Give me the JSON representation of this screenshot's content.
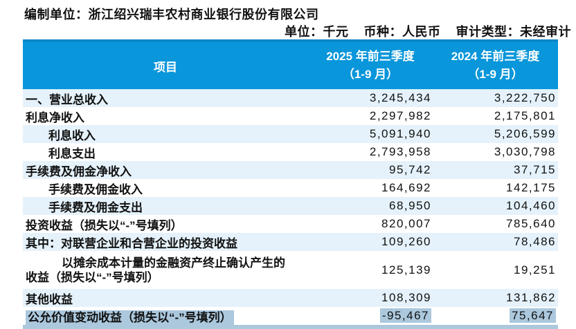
{
  "meta": {
    "prepared_by_label": "编制单位：",
    "prepared_by": "浙江绍兴瑞丰农村商业银行股份有限公司",
    "unit_label": "单位：",
    "unit_value": "千元",
    "currency_label": "币种：",
    "currency_value": "人民币",
    "audit_label": "审计类型：",
    "audit_value": "未经审计"
  },
  "table": {
    "columns": {
      "item": "项目",
      "y2025_line1": "2025 年前三季度",
      "y2025_line2": "（1-9 月）",
      "y2024_line1": "2024 年前三季度",
      "y2024_line2": "（1-9 月）"
    },
    "rows": [
      {
        "label": "一、营业总收入",
        "v2025": "3,245,434",
        "v2024": "3,222,750"
      },
      {
        "label": "利息净收入",
        "v2025": "2,297,982",
        "v2024": "2,175,801"
      },
      {
        "label": "利息收入",
        "indent": true,
        "v2025": "5,091,940",
        "v2024": "5,206,599"
      },
      {
        "label": "利息支出",
        "indent": true,
        "v2025": "2,793,958",
        "v2024": "3,030,798"
      },
      {
        "label": "手续费及佣金净收入",
        "v2025": "95,742",
        "v2024": "37,715"
      },
      {
        "label": "手续费及佣金收入",
        "indent": true,
        "v2025": "164,692",
        "v2024": "142,175"
      },
      {
        "label": "手续费及佣金支出",
        "indent": true,
        "v2025": "68,950",
        "v2024": "104,460"
      },
      {
        "label": "投资收益（损失以“-”号填列）",
        "v2025": "820,007",
        "v2024": "785,640"
      },
      {
        "label": "其中：对联营企业和合营企业的投资收益",
        "v2025": "109,260",
        "v2024": "78,486"
      },
      {
        "label": "以摊余成本计量的金融资产终止确认产生的\n收益（损失以“-”号填列）",
        "multiline": true,
        "v2025": "125,139",
        "v2024": "19,251"
      },
      {
        "label": "其他收益",
        "v2025": "108,309",
        "v2024": "131,862"
      },
      {
        "label": "公允价值变动收益（损失以“-”号填列）",
        "selected": true,
        "v2025": "-95,467",
        "v2024": "75,647"
      }
    ]
  },
  "colors": {
    "header_bg": "#0996da",
    "header_top": "#0d88c8",
    "row_alt_bg": "#e5f2fb",
    "selection_bg": "#abc8dd"
  }
}
